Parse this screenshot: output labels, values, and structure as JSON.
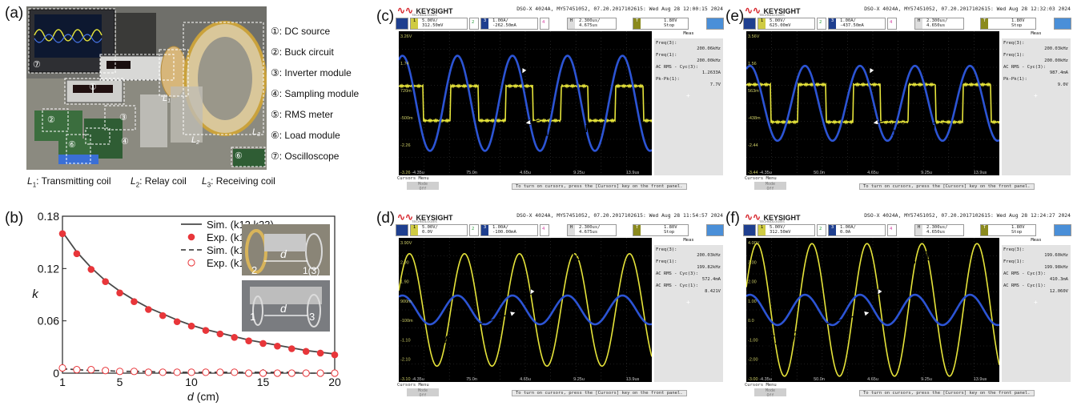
{
  "panels": {
    "a": "(a)",
    "b": "(b)",
    "c": "(c)",
    "d": "(d)",
    "e": "(e)",
    "f": "(f)"
  },
  "panel_a": {
    "legend": [
      {
        "num": "①",
        "text": ": DC source"
      },
      {
        "num": "②",
        "text": ": Buck circuit"
      },
      {
        "num": "③",
        "text": ": Inverter module"
      },
      {
        "num": "④",
        "text": ": Sampling module"
      },
      {
        "num": "⑤",
        "text": ": RMS meter"
      },
      {
        "num": "⑥",
        "text": ": Load module"
      },
      {
        "num": "⑦",
        "text": ": Oscilloscope"
      }
    ],
    "photo_labels": [
      "⑦",
      "①",
      "②",
      "③",
      "④",
      "⑤",
      "⑥",
      "L1",
      "L2",
      "L3"
    ],
    "coils": [
      {
        "sym": "L",
        "sub": "1",
        "text": ": Transmitting coil"
      },
      {
        "sym": "L",
        "sub": "2",
        "text": ": Relay coil"
      },
      {
        "sym": "L",
        "sub": "3",
        "text": ": Receiving coil"
      }
    ]
  },
  "chart_data": [
    {
      "type": "line",
      "panel": "b",
      "xlabel_sym": "d",
      "xlabel_unit": " (cm)",
      "ylabel": "k",
      "xlim": [
        1,
        20
      ],
      "ylim": [
        0,
        0.18
      ],
      "xticks": [
        1,
        5,
        10,
        15,
        20
      ],
      "yticks": [
        0,
        0.06,
        0.12,
        0.18
      ],
      "ytick_labels": [
        "0",
        "0.06",
        "0.12",
        "0.18"
      ],
      "legend_position": "top-right",
      "legend": [
        {
          "text": "Sim. (k12,k23)",
          "style": "solid-line"
        },
        {
          "text": "Exp. (k12,k23)",
          "style": "filled-dot"
        },
        {
          "text": "Sim. (k13)",
          "style": "dashed-line"
        },
        {
          "text": "Exp. (k13)",
          "style": "open-dot"
        }
      ],
      "series": [
        {
          "name": "Sim. (k12,k23)",
          "x": [
            1,
            2,
            3,
            4,
            5,
            6,
            7,
            8,
            9,
            10,
            11,
            12,
            13,
            14,
            15,
            16,
            17,
            18,
            19,
            20
          ],
          "values": [
            0.162,
            0.139,
            0.121,
            0.106,
            0.094,
            0.084,
            0.075,
            0.068,
            0.061,
            0.055,
            0.05,
            0.046,
            0.042,
            0.038,
            0.035,
            0.032,
            0.029,
            0.026,
            0.024,
            0.022
          ]
        },
        {
          "name": "Exp. (k12,k23)",
          "x": [
            1,
            2,
            3,
            4,
            5,
            6,
            7,
            8,
            9,
            10,
            11,
            12,
            13,
            14,
            15,
            16,
            17,
            18,
            19,
            20
          ],
          "values": [
            0.16,
            0.137,
            0.119,
            0.105,
            0.092,
            0.082,
            0.073,
            0.066,
            0.059,
            0.054,
            0.049,
            0.045,
            0.041,
            0.037,
            0.034,
            0.031,
            0.028,
            0.025,
            0.023,
            0.021
          ]
        },
        {
          "name": "Sim. (k13)",
          "x": [
            1,
            2,
            3,
            4,
            5,
            6,
            7,
            8,
            9,
            10,
            11,
            12,
            13,
            14,
            15,
            16,
            17,
            18,
            19,
            20
          ],
          "values": [
            0.005,
            0.004,
            0.003,
            0.003,
            0.002,
            0.002,
            0.002,
            0.001,
            0.001,
            0.001,
            0.001,
            0.001,
            0.001,
            0.001,
            0.001,
            0.001,
            0.001,
            0.0,
            0.0,
            0.0
          ]
        },
        {
          "name": "Exp. (k13)",
          "x": [
            1,
            2,
            3,
            4,
            5,
            6,
            7,
            8,
            9,
            10,
            11,
            12,
            13,
            14,
            15,
            16,
            17,
            18,
            19,
            20
          ],
          "values": [
            0.006,
            0.004,
            0.004,
            0.003,
            0.002,
            0.002,
            0.001,
            0.001,
            0.001,
            0.001,
            0.001,
            0.001,
            0.001,
            0.0,
            0.0,
            0.0,
            0.0,
            0.0,
            0.0,
            0.0
          ]
        }
      ],
      "inset_labels": [
        "2",
        "d",
        "1(3)",
        "1",
        "d",
        "3"
      ]
    }
  ],
  "scopes": [
    {
      "id": "c",
      "header": "DSO-X 4024A, MY57451052, 07.20.2017102615: Wed Aug 28 12:00:15 2024",
      "ch1": [
        "5.00V/",
        "312.50mV"
      ],
      "ch3": [
        "1.00A/",
        "-262.50mA"
      ],
      "time": [
        "2.300us/",
        "4.675us"
      ],
      "trig": [
        "1.80V",
        "Stop"
      ],
      "meas": [
        [
          "Freq(3):",
          "200.06kHz"
        ],
        [
          "Freq(1):",
          "200.00kHz"
        ],
        [
          "AC RMS - Cyc(3):",
          "1.2633A"
        ],
        [
          "Pk-Pk(1):",
          "7.7V"
        ]
      ],
      "yticks": [
        "3.26V",
        "1.74",
        "720m",
        "-500m",
        "-2.26",
        "-3.26"
      ],
      "xticks": [
        "-4.35u",
        "75.0n",
        "4.65u",
        "9.25u",
        "13.9us"
      ],
      "labels": [
        {
          "sym": "u",
          "sub": "1",
          "text": " [5V/div]"
        },
        {
          "sym": "i",
          "sub": "1",
          "text": " [1A/div]"
        }
      ],
      "yellow": {
        "amp": 0.24,
        "square": true
      },
      "blue": {
        "amp": 0.66
      }
    },
    {
      "id": "e",
      "header": "DSO-X 4024A, MY57451052, 07.20.2017102615: Wed Aug 28 12:32:03 2024",
      "ch1": [
        "5.00V/",
        "625.00mV"
      ],
      "ch3": [
        "1.00A/",
        "-437.50mA"
      ],
      "time": [
        "2.300us/",
        "4.650us"
      ],
      "trig": [
        "1.80V",
        "Stop"
      ],
      "meas": [
        [
          "Freq(3):",
          "200.03kHz"
        ],
        [
          "Freq(1):",
          "200.00kHz"
        ],
        [
          "AC RMS - Cyc(3):",
          "987.4mA"
        ],
        [
          "Pk-Pk(1):",
          "9.0V"
        ]
      ],
      "yticks": [
        "3.56V",
        "1.56",
        "563m",
        "-438m",
        "-2.44",
        "-3.44"
      ],
      "xticks": [
        "-4.35u",
        "50.0n",
        "4.65u",
        "9.25u",
        "13.9us"
      ],
      "labels": [
        {
          "sym": "u",
          "sub": "1",
          "text": " [5V/div]"
        },
        {
          "sym": "i",
          "sub": "1",
          "text": " [1A/div]"
        }
      ],
      "yellow": {
        "amp": 0.26,
        "square": true
      },
      "blue": {
        "amp": 0.52
      }
    },
    {
      "id": "d",
      "header": "DSO-X 4024A, MY57451052, 07.20.2017102615: Wed Aug 28 11:54:57 2024",
      "ch1": [
        "5.00V/",
        "0.0V"
      ],
      "ch3": [
        "1.00A/",
        "-100.00mA"
      ],
      "time": [
        "2.300us/",
        "4.675us"
      ],
      "trig": [
        "1.80V",
        "Stop"
      ],
      "meas": [
        [
          "Freq(3):",
          "200.03kHz"
        ],
        [
          "Freq(1):",
          "199.82kHz"
        ],
        [
          "AC RMS - Cyc(3):",
          "572.4mA"
        ],
        [
          "AC RMS - Cyc(1):",
          "8.421V"
        ]
      ],
      "yticks": [
        "3.90V",
        "2.90",
        "1.90",
        "900m",
        "-100m",
        "-1.10",
        "-2.10",
        "-3.10"
      ],
      "xticks": [
        "-4.35u",
        "75.0n",
        "4.65u",
        "9.25u",
        "13.9us"
      ],
      "labels": [
        {
          "sym": "u",
          "sub": "3",
          "text": " [5V/div]"
        },
        {
          "sym": "i",
          "sub": "3",
          "text": " [1A/div]"
        }
      ],
      "yellow": {
        "amp": 0.78,
        "square": false
      },
      "blue": {
        "amp": 0.2
      }
    },
    {
      "id": "f",
      "header": "DSO-X 4024A, MY57451052, 07.20.2017102615: Wed Aug 28 12:24:27 2024",
      "ch1": [
        "5.00V/",
        "312.50mV"
      ],
      "ch3": [
        "1.00A/",
        "0.0A"
      ],
      "time": [
        "2.300us/",
        "4.650us"
      ],
      "trig": [
        "1.80V",
        "Stop"
      ],
      "meas": [
        [
          "Freq(3):",
          "199.60kHz"
        ],
        [
          "Freq(1):",
          "199.98kHz"
        ],
        [
          "AC RMS - Cyc(3):",
          "410.3mA"
        ],
        [
          "AC RMS - Cyc(1):",
          "12.060V"
        ]
      ],
      "yticks": [
        "4.00V",
        "3.00",
        "2.00",
        "1.00",
        "0.0",
        "-1.00",
        "-2.00",
        "-3.00"
      ],
      "xticks": [
        "-4.35u",
        "50.0n",
        "4.65u",
        "9.25u",
        "13.9us"
      ],
      "labels": [
        {
          "sym": "u",
          "sub": "3",
          "text": " [1A/div]"
        },
        {
          "sym": "i",
          "sub": "3",
          "text": " [5V/div]"
        }
      ],
      "yellow": {
        "amp": 0.92,
        "square": false
      },
      "blue": {
        "amp": 0.21
      }
    }
  ],
  "scope_common": {
    "brand": "KEYSIGHT",
    "brand_sub": "TECHNOLOGIES",
    "cursors_menu": "Cursors Menu",
    "mode_label": "Mode",
    "mode_value": "Off",
    "footer_msg": "To turn on cursors, press the [Cursors] key on the front panel.",
    "meas_title": "Meas",
    "ch_nums": [
      "1",
      "2",
      "3",
      "4"
    ],
    "h_label": "H",
    "t_label": "T",
    "plus": "+"
  },
  "colors": {
    "yellow_trace": "#e6e43a",
    "blue_trace": "#2c54d4",
    "red_dots": "#e8363a",
    "dark_line": "#4a4a4a"
  }
}
